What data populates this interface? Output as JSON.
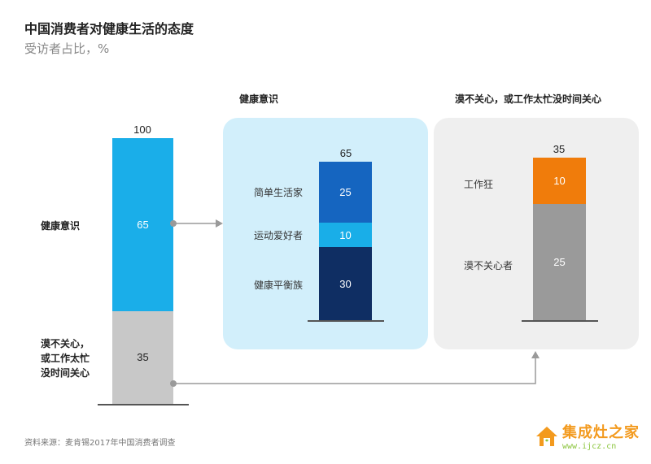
{
  "title": "中国消费者对健康生活的态度",
  "subtitle": "受访者占比，%",
  "panels": {
    "left_label_health": "健康意识",
    "left_label_apathy_lines": [
      "漠不关心，",
      "或工作太忙",
      "没时间关心"
    ],
    "health_title": "健康意识",
    "apathy_title": "漠不关心，或工作太忙没时间关心"
  },
  "source": "资料来源：麦肯锡2017年中国消费者调查",
  "watermark": {
    "brand": "集成灶之家",
    "url": "www.ijcz.cn"
  },
  "colors": {
    "main_blue": "#1aaee9",
    "grey": "#c8c8c8",
    "dark_blue_1": "#1565c0",
    "light_blue": "#19aee8",
    "navy": "#0f2e63",
    "orange": "#f07c0b",
    "mid_grey": "#9a9a9a",
    "panel_blue": "#d2effb",
    "panel_grey": "#efefef"
  },
  "chart_data": [
    {
      "type": "bar",
      "stacked": true,
      "total": 100,
      "segments": [
        {
          "label": "健康意识",
          "value": 65
        },
        {
          "label": "漠不关心，或工作太忙没时间关心",
          "value": 35
        }
      ]
    },
    {
      "type": "bar",
      "stacked": true,
      "title": "健康意识",
      "total": 65,
      "segments": [
        {
          "label": "简单生活家",
          "value": 25
        },
        {
          "label": "运动爱好者",
          "value": 10
        },
        {
          "label": "健康平衡族",
          "value": 30
        }
      ]
    },
    {
      "type": "bar",
      "stacked": true,
      "title": "漠不关心，或工作太忙没时间关心",
      "total": 35,
      "segments": [
        {
          "label": "工作狂",
          "value": 10
        },
        {
          "label": "漠不关心者",
          "value": 25
        }
      ]
    }
  ]
}
